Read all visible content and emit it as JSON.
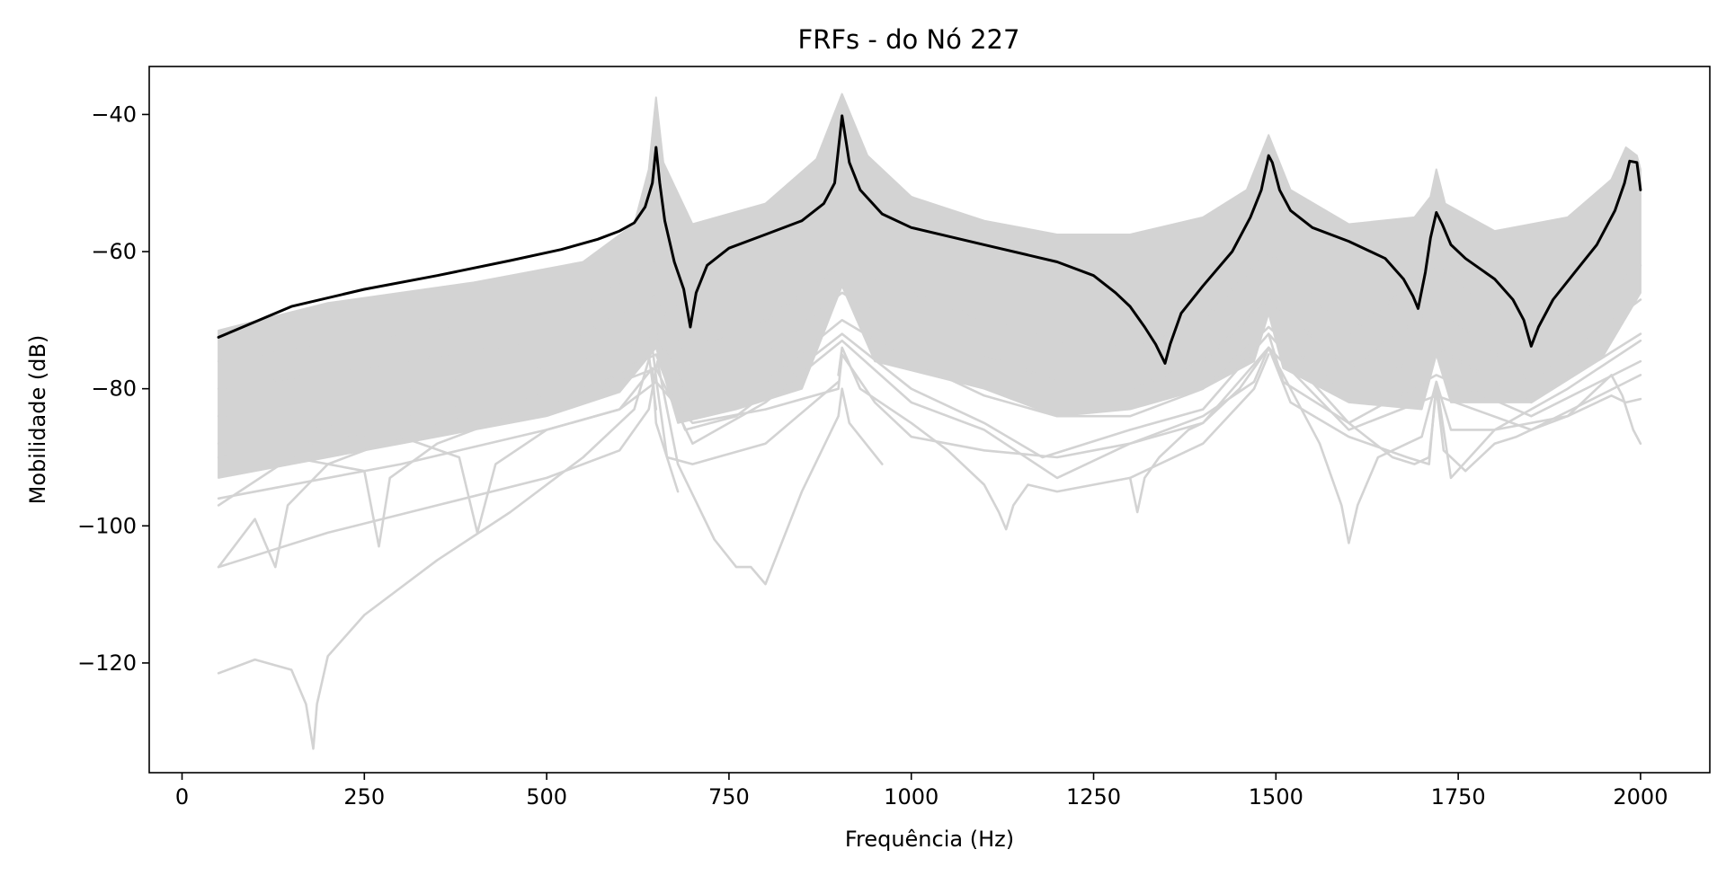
{
  "chart_data": {
    "type": "line",
    "title": "FRFs - do Nó 227",
    "xlabel": "Frequência (Hz)",
    "ylabel": "Mobilidade (dB)",
    "xlim": [
      -45,
      2095
    ],
    "ylim": [
      -136,
      -33
    ],
    "x_ticks": [
      {
        "value": 0,
        "label": "0"
      },
      {
        "value": 250,
        "label": "250"
      },
      {
        "value": 500,
        "label": "500"
      },
      {
        "value": 750,
        "label": "750"
      },
      {
        "value": 1000,
        "label": "1000"
      },
      {
        "value": 1250,
        "label": "1250"
      },
      {
        "value": 1500,
        "label": "1500"
      },
      {
        "value": 1750,
        "label": "1750"
      },
      {
        "value": 2000,
        "label": "2000"
      }
    ],
    "y_ticks": [
      {
        "value": -40,
        "label": "−40"
      },
      {
        "value": -60,
        "label": "−60"
      },
      {
        "value": -80,
        "label": "−80"
      },
      {
        "value": -100,
        "label": "−100"
      },
      {
        "value": -120,
        "label": "−120"
      }
    ],
    "grid": false,
    "legend": false,
    "colors": {
      "highlight": "#000000",
      "background_series": "#d3d3d3"
    },
    "gray_band": {
      "upper": [
        [
          50,
          -71.5
        ],
        [
          200,
          -67.5
        ],
        [
          400,
          -64.5
        ],
        [
          550,
          -61.5
        ],
        [
          620,
          -56
        ],
        [
          640,
          -48
        ],
        [
          650,
          -37.5
        ],
        [
          660,
          -47
        ],
        [
          700,
          -56
        ],
        [
          800,
          -53
        ],
        [
          870,
          -46.5
        ],
        [
          905,
          -37
        ],
        [
          940,
          -46
        ],
        [
          1000,
          -52
        ],
        [
          1100,
          -55.5
        ],
        [
          1200,
          -57.5
        ],
        [
          1300,
          -57.5
        ],
        [
          1400,
          -55
        ],
        [
          1460,
          -51
        ],
        [
          1490,
          -43
        ],
        [
          1520,
          -51
        ],
        [
          1600,
          -56
        ],
        [
          1690,
          -55
        ],
        [
          1712,
          -52
        ],
        [
          1720,
          -48
        ],
        [
          1732,
          -53
        ],
        [
          1800,
          -57
        ],
        [
          1900,
          -55
        ],
        [
          1960,
          -49.5
        ],
        [
          1980,
          -44.8
        ],
        [
          1995,
          -46
        ],
        [
          2000,
          -48
        ]
      ],
      "lower": [
        [
          50,
          -93
        ],
        [
          300,
          -88
        ],
        [
          500,
          -84
        ],
        [
          600,
          -80.5
        ],
        [
          650,
          -74
        ],
        [
          680,
          -85
        ],
        [
          760,
          -83
        ],
        [
          850,
          -80
        ],
        [
          905,
          -65
        ],
        [
          950,
          -76
        ],
        [
          1100,
          -80
        ],
        [
          1200,
          -84
        ],
        [
          1300,
          -83
        ],
        [
          1400,
          -80
        ],
        [
          1470,
          -76
        ],
        [
          1490,
          -69
        ],
        [
          1510,
          -77
        ],
        [
          1600,
          -82
        ],
        [
          1700,
          -83
        ],
        [
          1720,
          -75
        ],
        [
          1740,
          -82
        ],
        [
          1850,
          -82
        ],
        [
          1950,
          -75
        ],
        [
          2000,
          -66
        ]
      ]
    },
    "series": [
      {
        "style": "highlight",
        "x": [
          50,
          150,
          250,
          350,
          450,
          520,
          570,
          600,
          620,
          635,
          645,
          650,
          655,
          662,
          675,
          688,
          697,
          705,
          720,
          750,
          800,
          850,
          880,
          895,
          905,
          915,
          930,
          960,
          1000,
          1100,
          1200,
          1250,
          1280,
          1300,
          1320,
          1335,
          1348,
          1355,
          1370,
          1400,
          1440,
          1465,
          1480,
          1490,
          1495,
          1505,
          1520,
          1550,
          1600,
          1650,
          1675,
          1688,
          1695,
          1705,
          1712,
          1720,
          1728,
          1740,
          1760,
          1800,
          1825,
          1840,
          1850,
          1860,
          1880,
          1910,
          1940,
          1965,
          1978,
          1985,
          1995,
          2000
        ],
        "values": [
          -72.5,
          -68,
          -65.5,
          -63.5,
          -61.3,
          -59.7,
          -58.2,
          -57,
          -55.8,
          -53.5,
          -50,
          -44.8,
          -50,
          -55.5,
          -61.5,
          -65.5,
          -71,
          -66,
          -62,
          -59.5,
          -57.5,
          -55.5,
          -53,
          -50,
          -40.2,
          -47,
          -51,
          -54.5,
          -56.5,
          -59,
          -61.5,
          -63.5,
          -66,
          -68,
          -71,
          -73.5,
          -76.3,
          -73.5,
          -69,
          -65,
          -60,
          -55,
          -51,
          -46,
          -47,
          -51,
          -54,
          -56.5,
          -58.5,
          -61,
          -64,
          -66.5,
          -68.3,
          -63,
          -58,
          -54.3,
          -56,
          -59,
          -61,
          -64,
          -67,
          -70,
          -73.8,
          -71,
          -67,
          -63,
          -59,
          -54,
          -50,
          -46.8,
          -47,
          -51
        ]
      },
      {
        "style": "background",
        "x": [
          50,
          100,
          150,
          170,
          180,
          185,
          200,
          250,
          350,
          450,
          550,
          620,
          645,
          652,
          665,
          700,
          800,
          900
        ],
        "values": [
          -121.5,
          -119.5,
          -121,
          -126,
          -132.5,
          -126,
          -119,
          -113,
          -105,
          -98,
          -90,
          -83,
          -74,
          -80,
          -90,
          -91,
          -88,
          -79
        ]
      },
      {
        "style": "background",
        "x": [
          50,
          200,
          350,
          500,
          600,
          640,
          652,
          680,
          730,
          760,
          780,
          800,
          850,
          900,
          905,
          915,
          960
        ],
        "values": [
          -106,
          -101,
          -97,
          -93,
          -89,
          -83,
          -76,
          -91,
          -102,
          -106,
          -106,
          -108.5,
          -95,
          -84,
          -80,
          -85,
          -91
        ]
      },
      {
        "style": "background",
        "x": [
          50,
          100,
          128,
          145,
          200,
          300,
          380,
          405,
          430,
          500,
          600,
          645,
          650,
          680
        ],
        "values": [
          -106,
          -99,
          -106,
          -97,
          -91,
          -87,
          -90,
          -101,
          -91,
          -86,
          -83,
          -77,
          -85,
          -95
        ]
      },
      {
        "style": "background",
        "x": [
          50,
          150,
          250,
          270,
          285,
          350,
          450,
          550,
          640,
          650
        ],
        "values": [
          -97,
          -90,
          -92,
          -103,
          -93,
          -88,
          -84,
          -81,
          -75,
          -83
        ]
      },
      {
        "style": "background",
        "x": [
          50,
          300,
          500,
          600,
          650,
          700,
          800,
          900,
          905,
          950,
          1000,
          1100,
          1200,
          1300,
          1400,
          1470,
          1490
        ],
        "values": [
          -96,
          -91,
          -86,
          -83,
          -79,
          -85,
          -83,
          -80,
          -75,
          -82,
          -87,
          -89,
          -90,
          -88,
          -84,
          -79,
          -74
        ]
      },
      {
        "style": "background",
        "x": [
          900,
          905,
          930,
          1000,
          1050,
          1100,
          1120,
          1130,
          1140,
          1160,
          1200,
          1300,
          1400,
          1470,
          1490
        ],
        "values": [
          -78,
          -74,
          -80,
          -85,
          -89,
          -94,
          -98,
          -100.5,
          -97,
          -94,
          -95,
          -93,
          -88,
          -80,
          -75
        ]
      },
      {
        "style": "background",
        "x": [
          1490,
          1520,
          1560,
          1590,
          1600,
          1612,
          1640,
          1680,
          1700,
          1720,
          1740,
          1800,
          1900,
          1960,
          1980,
          2000
        ],
        "values": [
          -74,
          -80,
          -88,
          -97,
          -102.5,
          -97,
          -90,
          -88,
          -87,
          -79,
          -86,
          -86,
          -84,
          -81,
          -82,
          -81.5
        ]
      },
      {
        "style": "background",
        "x": [
          1490,
          1510,
          1600,
          1660,
          1690,
          1710,
          1720,
          1730,
          1760,
          1800,
          1830,
          1850,
          1900,
          1960,
          1975,
          1990,
          2000
        ],
        "values": [
          -72,
          -79,
          -85,
          -90,
          -91,
          -90,
          -80,
          -89,
          -92,
          -88,
          -87,
          -86,
          -84,
          -78,
          -81,
          -86,
          -88
        ]
      },
      {
        "style": "background",
        "x": [
          1300,
          1310,
          1320,
          1340,
          1380,
          1400,
          1450,
          1490,
          1520,
          1600,
          1680,
          1710,
          1720,
          1740,
          1800,
          1900,
          2000
        ],
        "values": [
          -93,
          -98,
          -93,
          -90,
          -86,
          -85,
          -80,
          -74,
          -82,
          -87,
          -90,
          -91,
          -79,
          -93,
          -86,
          -80,
          -73
        ]
      },
      {
        "style": "background",
        "x": [
          50,
          300,
          550,
          650,
          700,
          800,
          905,
          1000,
          1100,
          1200,
          1300,
          1400,
          1490,
          1600,
          1720,
          1850,
          2000
        ],
        "values": [
          -76,
          -72,
          -68,
          -61,
          -74,
          -70,
          -62,
          -66,
          -70,
          -73,
          -74,
          -70,
          -60,
          -72,
          -62,
          -74,
          -62
        ]
      },
      {
        "style": "background",
        "x": [
          50,
          300,
          550,
          650,
          700,
          800,
          905,
          1000,
          1100,
          1200,
          1300,
          1400,
          1490,
          1600,
          1720,
          1850,
          2000
        ],
        "values": [
          -80,
          -76,
          -72,
          -66,
          -78,
          -75,
          -66,
          -72,
          -75,
          -79,
          -80,
          -76,
          -67,
          -77,
          -68,
          -79,
          -67
        ]
      },
      {
        "style": "background",
        "x": [
          50,
          300,
          550,
          650,
          700,
          800,
          905,
          1000,
          1100,
          1200,
          1300,
          1400,
          1490,
          1600,
          1720,
          1850,
          2000
        ],
        "values": [
          -84,
          -80,
          -76,
          -72,
          -82,
          -79,
          -70,
          -76,
          -81,
          -84,
          -84,
          -80,
          -71,
          -81,
          -74,
          -82,
          -72
        ]
      },
      {
        "style": "background",
        "x": [
          50,
          300,
          550,
          650,
          690,
          760,
          905,
          1000,
          1100,
          1180,
          1300,
          1400,
          1490,
          1600,
          1720,
          1850,
          2000
        ],
        "values": [
          -88,
          -84,
          -80,
          -75,
          -86,
          -84,
          -72,
          -80,
          -85,
          -90,
          -86,
          -83,
          -72,
          -85,
          -78,
          -84,
          -76
        ]
      },
      {
        "style": "background",
        "x": [
          50,
          300,
          550,
          650,
          700,
          800,
          905,
          1000,
          1100,
          1200,
          1300,
          1400,
          1490,
          1600,
          1720,
          1850,
          2000
        ],
        "values": [
          -90,
          -86,
          -81,
          -77,
          -88,
          -82,
          -73,
          -82,
          -86,
          -93,
          -88,
          -85,
          -74,
          -86,
          -81,
          -86,
          -78
        ]
      }
    ]
  }
}
